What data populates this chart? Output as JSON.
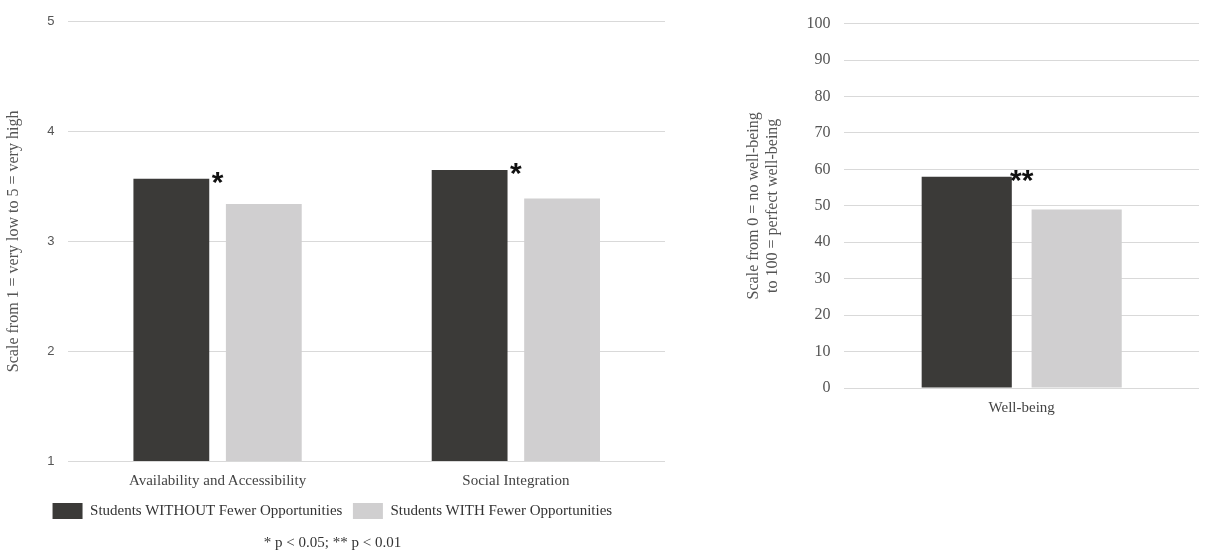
{
  "chart_data": [
    {
      "type": "bar",
      "ylabel": "Scale from 1 = very low to 5 = very high",
      "categories": [
        "Availability and Accessibility",
        "Social Integration"
      ],
      "series": [
        {
          "name": "Students WITHOUT Fewer Opportunities",
          "color": "#3b3a38",
          "values": [
            3.57,
            3.65
          ]
        },
        {
          "name": "Students WITH Fewer Opportunities",
          "color": "#d0cfd0",
          "values": [
            3.34,
            3.39
          ]
        }
      ],
      "ylim": [
        1,
        5
      ],
      "yticks": [
        1,
        2,
        3,
        4,
        5
      ],
      "grid": "y",
      "legend": "bottom",
      "annotations": [
        "*",
        "*",
        "* p < 0.05; ** p < 0.01"
      ]
    },
    {
      "type": "bar",
      "ylabel": "Scale from 0 = no well-being\nto 100 = perfect well-being",
      "categories": [
        "Well-being"
      ],
      "series": [
        {
          "color": "#3b3a38",
          "values": [
            58
          ]
        },
        {
          "color": "#d0cfd0",
          "values": [
            49
          ]
        }
      ],
      "ylim": [
        0,
        100
      ],
      "yticks": [
        0,
        10,
        20,
        30,
        40,
        50,
        60,
        70,
        80,
        90,
        100
      ],
      "grid": "y",
      "legend": false,
      "annotations": [
        "**"
      ]
    }
  ]
}
